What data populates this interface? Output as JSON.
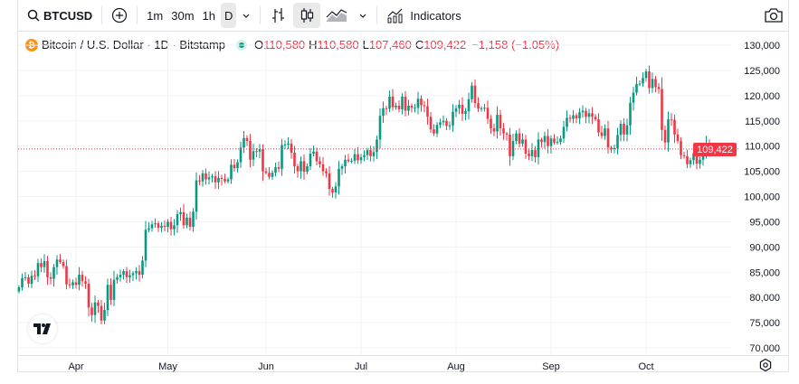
{
  "toolbar": {
    "symbol": "BTCUSD",
    "intervals": [
      "1m",
      "30m",
      "1h",
      "D"
    ],
    "active_interval": "D",
    "indicators_label": "Indicators"
  },
  "legend": {
    "title": "Bitcoin / U.S. Dollar · 1D · Bitstamp",
    "o_label": "O",
    "o_value": "110,580",
    "h_label": "H",
    "h_value": "110,580",
    "l_label": "L",
    "l_value": "107,460",
    "c_label": "C",
    "c_value": "109,422",
    "change": "−1,158 (−1.05%)"
  },
  "last_price_label": "109,422",
  "colors": {
    "up": "#089981",
    "down": "#f23645",
    "grid": "#f0f3fa"
  },
  "chart_data": {
    "type": "candlestick",
    "title": "Bitcoin / U.S. Dollar · 1D · Bitstamp",
    "ylim": [
      70000,
      130000
    ],
    "y_ticks": [
      "130,000",
      "125,000",
      "120,000",
      "115,000",
      "110,000",
      "105,000",
      "100,000",
      "95,000",
      "90,000",
      "85,000",
      "80,000",
      "75,000",
      "70,000"
    ],
    "x_ticks": [
      {
        "label": "Apr",
        "day": 18
      },
      {
        "label": "May",
        "day": 47
      },
      {
        "label": "Jun",
        "day": 78
      },
      {
        "label": "Jul",
        "day": 108
      },
      {
        "label": "Aug",
        "day": 138
      },
      {
        "label": "Sep",
        "day": 168
      },
      {
        "label": "Oct",
        "day": 198
      }
    ],
    "last_price": 109422,
    "closes_k": [
      82.0,
      83.8,
      84.0,
      82.7,
      84.3,
      84.2,
      86.8,
      86.0,
      87.2,
      84.0,
      83.7,
      86.0,
      87.5,
      87.0,
      86.2,
      82.6,
      82.4,
      83.0,
      82.5,
      84.5,
      83.2,
      82.7,
      78.0,
      76.5,
      79.0,
      78.3,
      75.4,
      77.5,
      82.5,
      79.5,
      83.5,
      84.0,
      84.5,
      85.2,
      84.0,
      84.4,
      84.8,
      85.2,
      84.5,
      87.3,
      93.4,
      93.7,
      94.5,
      94.7,
      93.8,
      94.2,
      94.0,
      95.0,
      93.5,
      94.3,
      96.5,
      96.9,
      94.3,
      95.8,
      94.0,
      97.0,
      103.2,
      103.0,
      104.6,
      103.4,
      103.8,
      104.0,
      102.8,
      103.7,
      103.5,
      103.0,
      103.4,
      106.3,
      105.6,
      106.8,
      109.7,
      111.6,
      111.0,
      107.3,
      109.0,
      108.9,
      109.4,
      105.0,
      104.7,
      103.9,
      104.7,
      105.8,
      105.5,
      110.2,
      110.3,
      110.5,
      108.7,
      106.0,
      105.0,
      107.0,
      104.9,
      106.0,
      108.5,
      108.9,
      107.0,
      106.4,
      105.0,
      104.6,
      101.5,
      100.8,
      102.0,
      105.5,
      106.0,
      107.3,
      107.0,
      107.1,
      108.4,
      107.2,
      107.8,
      108.2,
      109.2,
      108.0,
      108.8,
      111.3,
      116.0,
      117.5,
      117.4,
      119.8,
      117.7,
      118.0,
      117.3,
      119.8,
      117.0,
      118.0,
      117.6,
      117.6,
      119.4,
      118.1,
      117.9,
      115.8,
      113.3,
      112.5,
      114.2,
      114.7,
      115.0,
      114.0,
      114.1,
      116.8,
      117.5,
      118.2,
      116.4,
      116.9,
      119.3,
      122.0,
      118.5,
      117.4,
      117.5,
      117.6,
      115.4,
      113.5,
      112.9,
      116.2,
      113.5,
      112.5,
      112.3,
      108.0,
      111.0,
      112.5,
      110.5,
      111.3,
      108.5,
      108.0,
      109.2,
      107.8,
      111.3,
      110.8,
      112.0,
      110.0,
      111.5,
      110.7,
      110.8,
      111.5,
      113.8,
      115.6,
      115.4,
      116.1,
      115.5,
      116.7,
      117.0,
      115.8,
      116.5,
      115.8,
      115.3,
      112.7,
      112.0,
      113.5,
      109.7,
      109.4,
      109.6,
      112.2,
      114.4,
      112.3,
      114.1,
      118.6,
      120.6,
      122.3,
      122.4,
      123.5,
      124.8,
      121.5,
      123.3,
      121.7,
      121.3,
      113.2,
      110.7,
      115.3,
      115.2,
      112.3,
      111.0,
      108.2,
      108.0,
      106.4,
      107.2,
      108.6,
      106.5,
      107.3,
      108.8,
      110.58,
      109.422
    ]
  }
}
